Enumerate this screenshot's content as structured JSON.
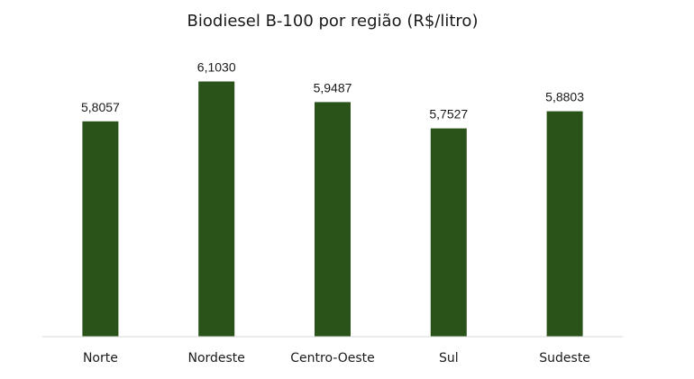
{
  "chart_data": {
    "type": "bar",
    "title": "Biodiesel B-100 por região (R$/litro)",
    "categories": [
      "Norte",
      "Nordeste",
      "Centro-Oeste",
      "Sul",
      "Sudeste"
    ],
    "values": [
      5.8057,
      6.103,
      5.9487,
      5.7527,
      5.8803
    ],
    "value_labels": [
      "5,8057",
      "6,1030",
      "5,9487",
      "5,7527",
      "5,8803"
    ],
    "xlabel": "",
    "ylabel": "",
    "ylim": [
      4.2,
      6.2
    ],
    "grid": false,
    "legend": "none",
    "bar_color": "#2a5319",
    "axis_color": "#d9d9d9"
  }
}
